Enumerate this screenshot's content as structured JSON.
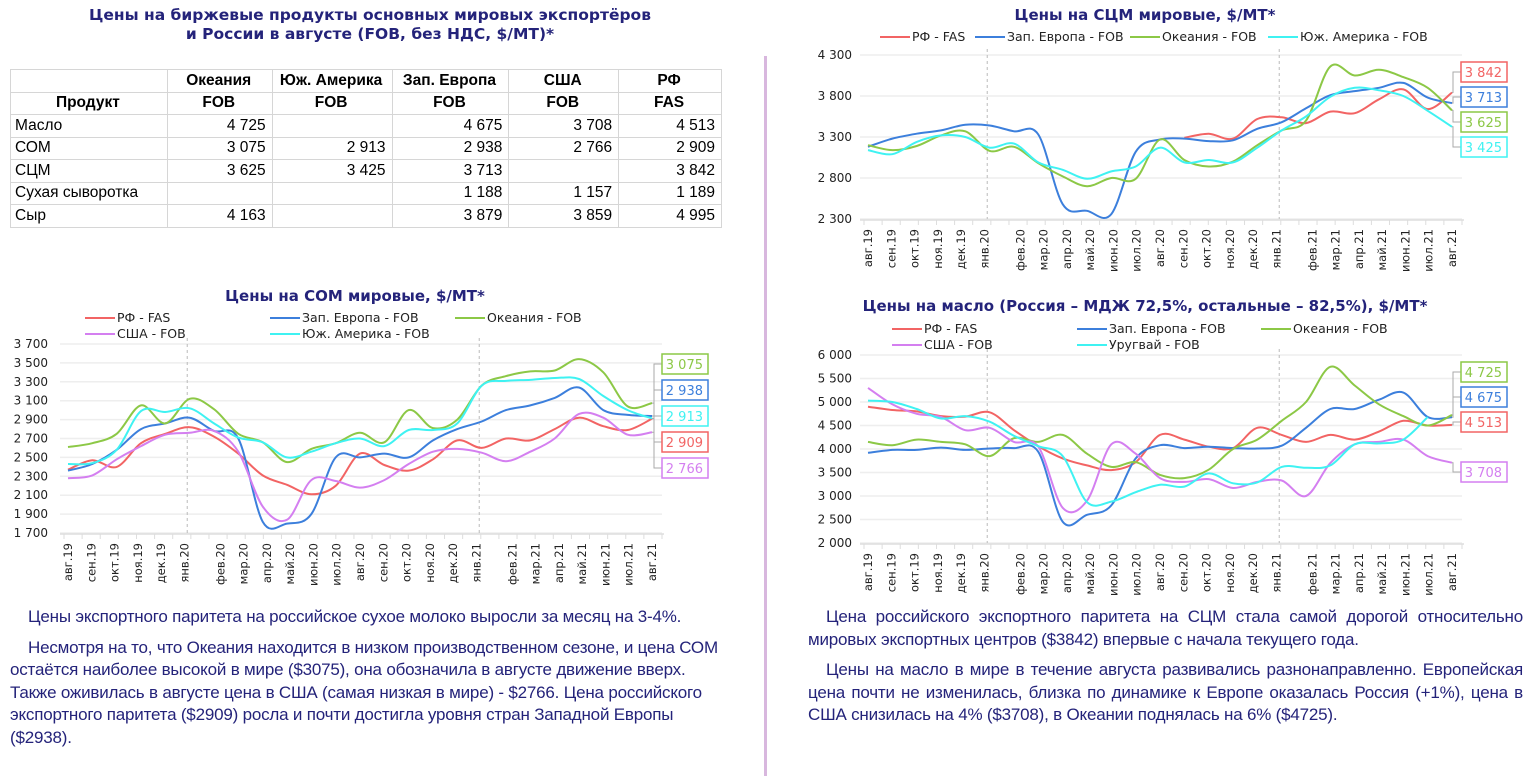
{
  "table": {
    "title_line1": "Цены на биржевые продукты основных мировых экспортёров",
    "title_line2": "и России в августе (FOB, без НДС, $/MT)*",
    "header_row1": [
      "",
      "Океания",
      "Юж. Америка",
      "Зап. Европа",
      "США",
      "РФ"
    ],
    "header_row2": [
      "Продукт",
      "FOB",
      "FOB",
      "FOB",
      "FOB",
      "FAS"
    ],
    "rows": [
      {
        "product": "Масло",
        "values": [
          "4 725",
          "",
          "4 675",
          "3 708",
          "4 513"
        ]
      },
      {
        "product": "СОМ",
        "values": [
          "3 075",
          "2 913",
          "2 938",
          "2 766",
          "2 909"
        ]
      },
      {
        "product": "СЦМ",
        "values": [
          "3 625",
          "3 425",
          "3 713",
          "",
          "3 842"
        ]
      },
      {
        "product": "Сухая сыворотка",
        "values": [
          "",
          "",
          "1 188",
          "1 157",
          "1 189"
        ]
      },
      {
        "product": "Сыр",
        "values": [
          "4 163",
          "",
          "3 879",
          "3 859",
          "4 995"
        ]
      }
    ]
  },
  "colors": {
    "rf": "#f26464",
    "eu": "#3c7fdc",
    "oceania": "#8cc846",
    "usa": "#d47ff0",
    "sa": "#3ff2f2",
    "title": "#24237a",
    "divider": "#d8b7de"
  },
  "chart_data": [
    {
      "id": "som",
      "type": "line",
      "title": "Цены на СОМ мировые, $/MT*",
      "xlabel": "",
      "ylabel": "",
      "ylim": [
        1700,
        3700
      ],
      "yticks": [
        1700,
        1900,
        2100,
        2300,
        2500,
        2700,
        2900,
        3100,
        3300,
        3500,
        3700
      ],
      "ytick_labels": [
        "1 700",
        "1 900",
        "2 100",
        "2 300",
        "2 500",
        "2 700",
        "2 900",
        "3 100",
        "3 300",
        "3 500",
        "3 700"
      ],
      "x_tick_labels": [
        "авг.19",
        "сен.19",
        "окт.19",
        "ноя.19",
        "дек.19",
        "янв.20",
        "фев.20",
        "мар.20",
        "апр.20",
        "май.20",
        "июн.20",
        "июл.20",
        "авг.20",
        "сен.20",
        "окт.20",
        "ноя.20",
        "дек.20",
        "янв.21",
        "фев.21",
        "мар.21",
        "апр.21",
        "май.21",
        "июн.21",
        "июл.21",
        "авг.21"
      ],
      "grid": true,
      "legend_position": "top",
      "legend": [
        "РФ - FAS",
        "Зап. Европа - FOB",
        "Океания - FOB",
        "США - FOB",
        "Юж. Америка - FOB"
      ],
      "series": [
        {
          "name": "РФ - FAS",
          "color_key": "rf",
          "end_label": "2 909",
          "values": [
            2370,
            2470,
            2400,
            2650,
            2750,
            2820,
            2720,
            2540,
            2310,
            2210,
            2110,
            2200,
            2540,
            2420,
            2360,
            2480,
            2680,
            2600,
            2700,
            2680,
            2800,
            2920,
            2830,
            2790,
            2909
          ]
        },
        {
          "name": "Зап. Европа - FOB",
          "color_key": "eu",
          "end_label": "2 938",
          "values": [
            2360,
            2430,
            2580,
            2800,
            2860,
            2920,
            2780,
            2700,
            1820,
            1800,
            1900,
            2500,
            2500,
            2540,
            2500,
            2680,
            2800,
            2880,
            3000,
            3050,
            3130,
            3240,
            3000,
            2950,
            2938
          ]
        },
        {
          "name": "Океания - FOB",
          "color_key": "oceania",
          "end_label": "3 075",
          "values": [
            2610,
            2650,
            2750,
            3050,
            2860,
            3120,
            3010,
            2750,
            2660,
            2450,
            2590,
            2650,
            2760,
            2660,
            3000,
            2810,
            2900,
            3260,
            3360,
            3410,
            3420,
            3540,
            3400,
            3040,
            3075
          ]
        },
        {
          "name": "США - FOB",
          "color_key": "usa",
          "end_label": "2 766",
          "values": [
            2280,
            2310,
            2480,
            2620,
            2740,
            2760,
            2780,
            2560,
            1980,
            1840,
            2260,
            2250,
            2180,
            2260,
            2430,
            2560,
            2590,
            2550,
            2460,
            2560,
            2700,
            2960,
            2920,
            2740,
            2766
          ]
        },
        {
          "name": "Юж. Америка - FOB",
          "color_key": "sa",
          "end_label": "2 913",
          "values": [
            2430,
            2440,
            2580,
            2990,
            2980,
            3020,
            2860,
            2710,
            2660,
            2500,
            2560,
            2650,
            2700,
            2620,
            2790,
            2790,
            2860,
            3260,
            3310,
            3320,
            3340,
            3330,
            3150,
            3000,
            2913
          ]
        }
      ]
    },
    {
      "id": "scm",
      "type": "line",
      "title": "Цены на СЦМ мировые, $/MT*",
      "xlabel": "",
      "ylabel": "",
      "ylim": [
        2300,
        4300
      ],
      "yticks": [
        2300,
        2800,
        3300,
        3800,
        4300
      ],
      "ytick_labels": [
        "2 300",
        "2 800",
        "3 300",
        "3 800",
        "4 300"
      ],
      "x_tick_labels": [
        "авг.19",
        "сен.19",
        "окт.19",
        "ноя.19",
        "дек.19",
        "янв.20",
        "фев.20",
        "мар.20",
        "апр.20",
        "май.20",
        "июн.20",
        "июл.20",
        "авг.20",
        "сен.20",
        "окт.20",
        "ноя.20",
        "дек.20",
        "янв.21",
        "фев.21",
        "мар.21",
        "апр.21",
        "май.21",
        "июн.21",
        "июл.21",
        "авг.21"
      ],
      "grid": true,
      "legend_position": "top",
      "legend": [
        "РФ - FAS",
        "Зап. Европа - FOB",
        "Океания - FOB",
        "Юж. Америка - FOB"
      ],
      "series": [
        {
          "name": "РФ - FAS",
          "color_key": "rf",
          "end_label": "3 842",
          "values": [
            null,
            null,
            null,
            null,
            null,
            null,
            null,
            null,
            null,
            null,
            null,
            null,
            null,
            3290,
            3340,
            3280,
            3520,
            3540,
            3470,
            3610,
            3590,
            3760,
            3880,
            3640,
            3842
          ]
        },
        {
          "name": "Зап. Европа - FOB",
          "color_key": "eu",
          "end_label": "3 713",
          "values": [
            3180,
            3280,
            3340,
            3380,
            3450,
            3440,
            3370,
            3330,
            2480,
            2400,
            2360,
            3120,
            3270,
            3280,
            3250,
            3260,
            3400,
            3480,
            3650,
            3810,
            3860,
            3900,
            3960,
            3780,
            3713
          ]
        },
        {
          "name": "Океания - FOB",
          "color_key": "oceania",
          "end_label": "3 625",
          "values": [
            3200,
            3140,
            3190,
            3320,
            3370,
            3130,
            3180,
            2980,
            2820,
            2700,
            2800,
            2790,
            3270,
            3020,
            2940,
            3000,
            3200,
            3380,
            3500,
            4160,
            4050,
            4120,
            4030,
            3900,
            3625
          ]
        },
        {
          "name": "Юж. Америка - FOB",
          "color_key": "sa",
          "end_label": "3 425",
          "values": [
            3140,
            3090,
            3240,
            3320,
            3300,
            3170,
            3220,
            2990,
            2900,
            2790,
            2880,
            2940,
            3170,
            2990,
            3020,
            2990,
            3170,
            3380,
            3550,
            3790,
            3900,
            3870,
            3800,
            3620,
            3425
          ]
        }
      ]
    },
    {
      "id": "butter",
      "type": "line",
      "title": "Цены на масло (Россия – МДЖ 72,5%, остальные – 82,5%), $/MT*",
      "xlabel": "",
      "ylabel": "",
      "ylim": [
        2000,
        6000
      ],
      "yticks": [
        2000,
        2500,
        3000,
        3500,
        4000,
        4500,
        5000,
        5500,
        6000
      ],
      "ytick_labels": [
        "2 000",
        "2 500",
        "3 000",
        "3 500",
        "4 000",
        "4 500",
        "5 000",
        "5 500",
        "6 000"
      ],
      "x_tick_labels": [
        "авг.19",
        "сен.19",
        "окт.19",
        "ноя.19",
        "дек.19",
        "янв.20",
        "фев.20",
        "мар.20",
        "апр.20",
        "май.20",
        "июн.20",
        "июл.20",
        "авг.20",
        "сен.20",
        "окт.20",
        "ноя.20",
        "дек.20",
        "янв.21",
        "фев.21",
        "мар.21",
        "апр.21",
        "май.21",
        "июн.21",
        "июл.21",
        "авг.21"
      ],
      "grid": true,
      "legend_position": "top",
      "legend": [
        "РФ - FAS",
        "Зап. Европа - FOB",
        "Океания - FOB",
        "США - FOB",
        "Уругвай - FOB"
      ],
      "series": [
        {
          "name": "РФ - FAS",
          "color_key": "rf",
          "end_label": "4 513",
          "values": [
            4900,
            4830,
            4800,
            4700,
            4690,
            4780,
            4400,
            4060,
            3800,
            3650,
            3550,
            3720,
            4300,
            4200,
            4050,
            4020,
            4450,
            4300,
            4150,
            4300,
            4200,
            4370,
            4600,
            4500,
            4513
          ]
        },
        {
          "name": "Зап. Европа - FOB",
          "color_key": "eu",
          "end_label": "4 675",
          "values": [
            3920,
            3980,
            3980,
            4030,
            3980,
            4010,
            4020,
            3940,
            2450,
            2600,
            2800,
            3800,
            4080,
            4020,
            4050,
            4020,
            4010,
            4070,
            4450,
            4850,
            4850,
            5050,
            5200,
            4680,
            4675
          ]
        },
        {
          "name": "Океания - FOB",
          "color_key": "oceania",
          "end_label": "4 725",
          "values": [
            4150,
            4080,
            4200,
            4150,
            4100,
            3850,
            4230,
            4150,
            4300,
            3900,
            3620,
            3720,
            3450,
            3380,
            3560,
            4000,
            4200,
            4600,
            5000,
            5750,
            5350,
            4950,
            4700,
            4500,
            4725
          ]
        },
        {
          "name": "США - FOB",
          "color_key": "usa",
          "end_label": "3 708",
          "values": [
            5300,
            4950,
            4750,
            4680,
            4400,
            4450,
            4150,
            4050,
            2750,
            2900,
            4100,
            3900,
            3380,
            3300,
            3360,
            3170,
            3300,
            3330,
            3000,
            3700,
            4100,
            4150,
            4200,
            3850,
            3708
          ]
        },
        {
          "name": "Уругвай - FOB",
          "color_key": "sa",
          "end_label": "",
          "values": [
            5030,
            5000,
            4850,
            4650,
            4700,
            4580,
            4280,
            4060,
            3850,
            2870,
            2880,
            3080,
            3240,
            3200,
            3480,
            3270,
            3290,
            3620,
            3600,
            3650,
            4100,
            4120,
            4200,
            4680,
            null
          ]
        }
      ]
    }
  ],
  "text_left": [
    "Цены экспортного паритета на российское сухое молоко выросли за месяц на 3-4%.",
    "Несмотря на то, что Океания находится в низком производственном сезоне, и цена СОМ остаётся наиболее высокой в мире ($3075), она обозначила в августе движение вверх. Также оживилась в августе цена в США (самая низкая в мире) - $2766. Цена российского экспортного паритета ($2909) росла и почти достигла уровня стран Западной Европы ($2938)."
  ],
  "text_right": [
    "Цена российского экспортного паритета на СЦМ стала самой дорогой относительно мировых экспортных центров ($3842) впервые с начала текущего года.",
    "Цены на масло в мире в течение августа развивались разнонаправленно. Европейская цена почти не изменилась, близка по динамике к Европе оказалась Россия (+1%), цена в США снизилась на 4% ($3708), в Океании поднялась на 6% ($4725)."
  ]
}
